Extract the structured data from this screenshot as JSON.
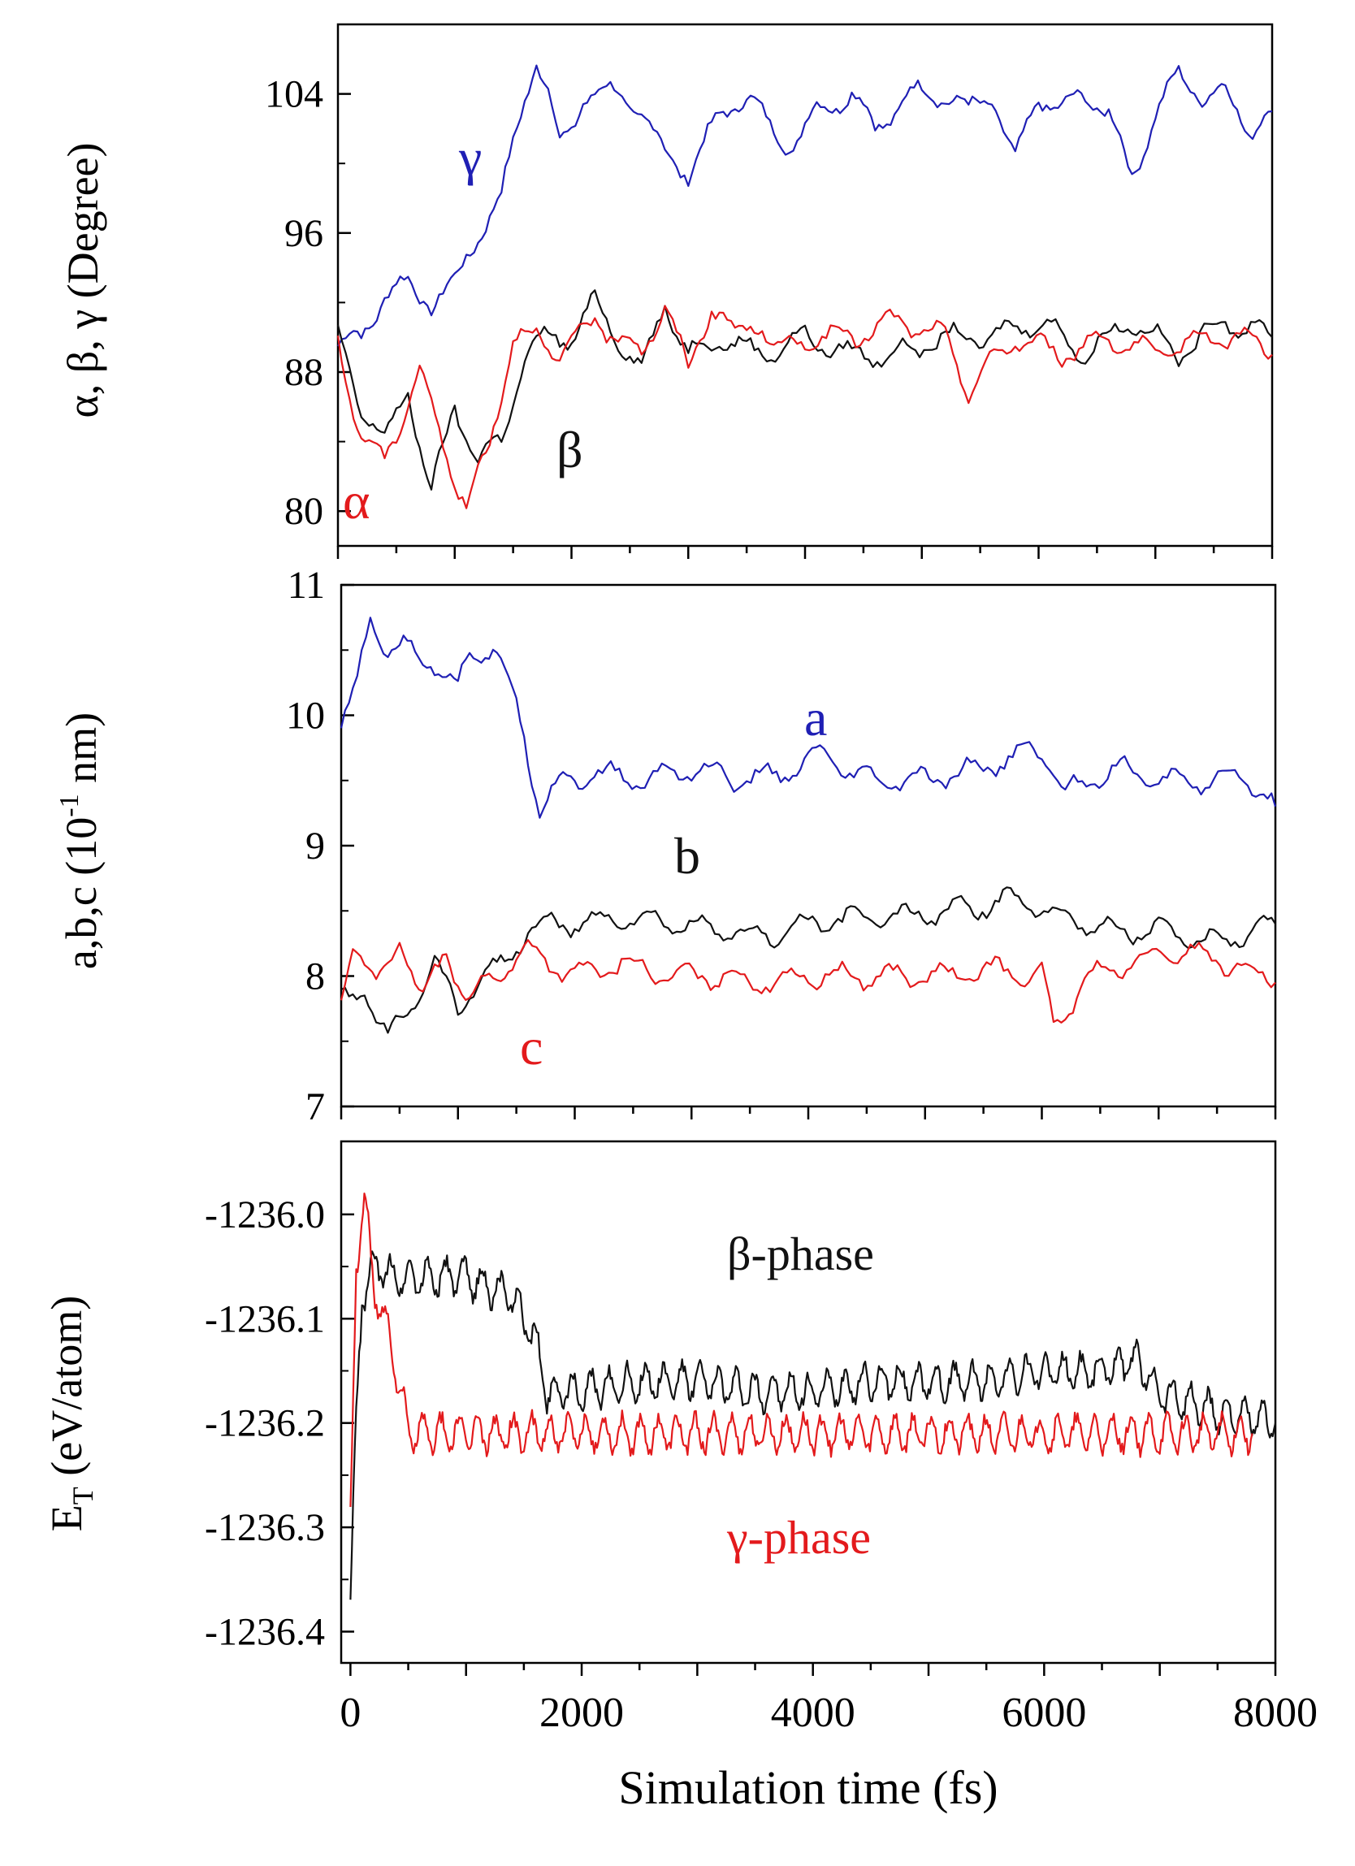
{
  "chart_data": [
    {
      "type": "line",
      "id": "angles",
      "ylabel": "α, β, γ (Degree)",
      "xlim": [
        0,
        8000
      ],
      "ylim": [
        78,
        108
      ],
      "yticks": [
        80,
        88,
        96,
        104
      ],
      "series": [
        {
          "name": "γ",
          "color": "#1f1fb4",
          "points": [
            [
              0,
              89.5
            ],
            [
              200,
              90
            ],
            [
              400,
              92.5
            ],
            [
              600,
              93
            ],
            [
              800,
              92
            ],
            [
              1000,
              93
            ],
            [
              1200,
              96
            ],
            [
              1400,
              98
            ],
            [
              1600,
              104
            ],
            [
              1700,
              106
            ],
            [
              1800,
              104
            ],
            [
              1900,
              101
            ],
            [
              2000,
              102
            ],
            [
              2100,
              104
            ],
            [
              2400,
              104
            ],
            [
              2600,
              103
            ],
            [
              2800,
              100.5
            ],
            [
              3000,
              99.5
            ],
            [
              3300,
              103
            ],
            [
              3500,
              104
            ],
            [
              3700,
              102
            ],
            [
              3900,
              101
            ],
            [
              4100,
              103
            ],
            [
              4400,
              104
            ],
            [
              4600,
              102
            ],
            [
              4900,
              104
            ],
            [
              5200,
              104
            ],
            [
              5400,
              103
            ],
            [
              5600,
              104
            ],
            [
              5800,
              100
            ],
            [
              6000,
              104
            ],
            [
              6200,
              103
            ],
            [
              6400,
              104
            ],
            [
              6600,
              103
            ],
            [
              6800,
              99
            ],
            [
              7000,
              103
            ],
            [
              7200,
              105
            ],
            [
              7400,
              104
            ],
            [
              7600,
              104
            ],
            [
              7800,
              102
            ],
            [
              8000,
              103
            ]
          ]
        },
        {
          "name": "β",
          "color": "#111111",
          "points": [
            [
              0,
              90
            ],
            [
              200,
              86
            ],
            [
              400,
              84
            ],
            [
              600,
              87
            ],
            [
              800,
              81
            ],
            [
              1000,
              86
            ],
            [
              1200,
              83
            ],
            [
              1400,
              84
            ],
            [
              1600,
              89
            ],
            [
              1800,
              90
            ],
            [
              2000,
              90
            ],
            [
              2200,
              92
            ],
            [
              2400,
              90
            ],
            [
              2600,
              88
            ],
            [
              2800,
              92
            ],
            [
              3000,
              89
            ],
            [
              3300,
              90
            ],
            [
              3600,
              89
            ],
            [
              4000,
              90
            ],
            [
              4400,
              89
            ],
            [
              4800,
              89
            ],
            [
              5200,
              90
            ],
            [
              5600,
              90
            ],
            [
              6000,
              91
            ],
            [
              6400,
              89
            ],
            [
              6800,
              91
            ],
            [
              7200,
              89
            ],
            [
              7600,
              91
            ],
            [
              8000,
              90
            ]
          ]
        },
        {
          "name": "α",
          "color": "#e31a1c",
          "points": [
            [
              0,
              90
            ],
            [
              200,
              84
            ],
            [
              400,
              83
            ],
            [
              700,
              88
            ],
            [
              900,
              84
            ],
            [
              1100,
              80
            ],
            [
              1300,
              84
            ],
            [
              1500,
              90
            ],
            [
              1700,
              90
            ],
            [
              1900,
              89
            ],
            [
              2200,
              91
            ],
            [
              2400,
              90
            ],
            [
              2600,
              89
            ],
            [
              2800,
              92
            ],
            [
              3000,
              88
            ],
            [
              3200,
              92
            ],
            [
              3400,
              90
            ],
            [
              3600,
              91
            ],
            [
              3800,
              89
            ],
            [
              4000,
              90
            ],
            [
              4400,
              90
            ],
            [
              4800,
              91
            ],
            [
              5200,
              90
            ],
            [
              5400,
              87
            ],
            [
              5800,
              90
            ],
            [
              6200,
              89
            ],
            [
              6600,
              90
            ],
            [
              7000,
              89
            ],
            [
              7400,
              90
            ],
            [
              7800,
              90
            ],
            [
              8000,
              89
            ]
          ]
        }
      ],
      "annotations": [
        "γ",
        "β",
        "α"
      ]
    },
    {
      "type": "line",
      "id": "lattice",
      "ylabel_main": "a,b,c (10",
      "ylabel_sup": "-1",
      "ylabel_tail": " nm)",
      "xlim": [
        0,
        8000
      ],
      "ylim": [
        7,
        11
      ],
      "yticks": [
        7,
        8,
        9,
        10,
        11
      ],
      "series": [
        {
          "name": "a",
          "color": "#1f1fb4",
          "points": [
            [
              0,
              9.9
            ],
            [
              100,
              10.1
            ],
            [
              250,
              10.75
            ],
            [
              400,
              10.5
            ],
            [
              600,
              10.5
            ],
            [
              800,
              10.4
            ],
            [
              1000,
              10.2
            ],
            [
              1100,
              10.5
            ],
            [
              1300,
              10.5
            ],
            [
              1500,
              10.1
            ],
            [
              1700,
              9.3
            ],
            [
              1900,
              9.5
            ],
            [
              2200,
              9.55
            ],
            [
              2600,
              9.5
            ],
            [
              3000,
              9.6
            ],
            [
              3400,
              9.5
            ],
            [
              3800,
              9.55
            ],
            [
              4100,
              9.7
            ],
            [
              4500,
              9.5
            ],
            [
              5000,
              9.5
            ],
            [
              5500,
              9.6
            ],
            [
              6000,
              9.75
            ],
            [
              6200,
              9.4
            ],
            [
              6600,
              9.6
            ],
            [
              7000,
              9.5
            ],
            [
              7400,
              9.5
            ],
            [
              7800,
              9.5
            ],
            [
              8000,
              9.3
            ]
          ]
        },
        {
          "name": "b",
          "color": "#111111",
          "points": [
            [
              0,
              7.8
            ],
            [
              200,
              7.9
            ],
            [
              400,
              7.5
            ],
            [
              600,
              7.8
            ],
            [
              800,
              8.1
            ],
            [
              1000,
              7.75
            ],
            [
              1200,
              8.0
            ],
            [
              1400,
              8.1
            ],
            [
              1600,
              8.35
            ],
            [
              1800,
              8.4
            ],
            [
              2000,
              8.4
            ],
            [
              2400,
              8.45
            ],
            [
              2800,
              8.4
            ],
            [
              3200,
              8.35
            ],
            [
              3600,
              8.3
            ],
            [
              4000,
              8.4
            ],
            [
              4400,
              8.45
            ],
            [
              4800,
              8.45
            ],
            [
              5200,
              8.5
            ],
            [
              5600,
              8.55
            ],
            [
              5800,
              8.6
            ],
            [
              6200,
              8.45
            ],
            [
              6600,
              8.35
            ],
            [
              7000,
              8.35
            ],
            [
              7400,
              8.25
            ],
            [
              7800,
              8.35
            ],
            [
              8000,
              8.4
            ]
          ]
        },
        {
          "name": "c",
          "color": "#e31a1c",
          "points": [
            [
              0,
              7.8
            ],
            [
              100,
              8.3
            ],
            [
              300,
              7.9
            ],
            [
              500,
              8.3
            ],
            [
              700,
              7.8
            ],
            [
              900,
              8.2
            ],
            [
              1100,
              7.8
            ],
            [
              1300,
              8.0
            ],
            [
              1600,
              8.2
            ],
            [
              2000,
              8.0
            ],
            [
              2400,
              8.1
            ],
            [
              2800,
              8.0
            ],
            [
              3200,
              8.0
            ],
            [
              3600,
              7.95
            ],
            [
              4000,
              8.0
            ],
            [
              4400,
              8.0
            ],
            [
              4800,
              8.0
            ],
            [
              5200,
              8.0
            ],
            [
              5600,
              8.05
            ],
            [
              6000,
              8.0
            ],
            [
              6100,
              7.6
            ],
            [
              6400,
              8.0
            ],
            [
              6800,
              8.1
            ],
            [
              7200,
              8.2
            ],
            [
              7600,
              8.1
            ],
            [
              8000,
              7.95
            ]
          ]
        }
      ],
      "annotations": [
        "a",
        "b",
        "c"
      ]
    },
    {
      "type": "line",
      "id": "energy",
      "ylabel_main": "E",
      "ylabel_sub": "T",
      "ylabel_tail": " (eV/atom)",
      "xlabel": "Simulation time (fs)",
      "xlim": [
        -80,
        8000
      ],
      "ylim": [
        -1236.43,
        -1235.93
      ],
      "xticks": [
        0,
        2000,
        4000,
        6000,
        8000
      ],
      "yticks": [
        -1236.4,
        -1236.3,
        -1236.2,
        -1236.1,
        -1236.0
      ],
      "ytick_labels": [
        "-1236.4",
        "-1236.3",
        "-1236.2",
        "-1236.1",
        "-1236.0"
      ],
      "series": [
        {
          "name": "β-phase",
          "color": "#111111",
          "points": [
            [
              0,
              -1236.37
            ],
            [
              50,
              -1236.2
            ],
            [
              100,
              -1236.08
            ],
            [
              200,
              -1236.05
            ],
            [
              400,
              -1236.06
            ],
            [
              600,
              -1236.06
            ],
            [
              800,
              -1236.06
            ],
            [
              1000,
              -1236.06
            ],
            [
              1200,
              -1236.07
            ],
            [
              1400,
              -1236.08
            ],
            [
              1600,
              -1236.12
            ],
            [
              1700,
              -1236.17
            ],
            [
              2000,
              -1236.17
            ],
            [
              2500,
              -1236.16
            ],
            [
              3000,
              -1236.16
            ],
            [
              3500,
              -1236.17
            ],
            [
              4000,
              -1236.17
            ],
            [
              4500,
              -1236.16
            ],
            [
              5000,
              -1236.16
            ],
            [
              5500,
              -1236.16
            ],
            [
              6000,
              -1236.15
            ],
            [
              6500,
              -1236.15
            ],
            [
              6800,
              -1236.14
            ],
            [
              7000,
              -1236.17
            ],
            [
              7500,
              -1236.19
            ],
            [
              8000,
              -1236.2
            ]
          ]
        },
        {
          "name": "γ-phase",
          "color": "#e31a1c",
          "points": [
            [
              0,
              -1236.3
            ],
            [
              50,
              -1236.05
            ],
            [
              120,
              -1235.98
            ],
            [
              200,
              -1236.07
            ],
            [
              300,
              -1236.1
            ],
            [
              400,
              -1236.15
            ],
            [
              500,
              -1236.21
            ],
            [
              700,
              -1236.21
            ],
            [
              1000,
              -1236.21
            ],
            [
              1500,
              -1236.21
            ],
            [
              2000,
              -1236.21
            ],
            [
              3000,
              -1236.21
            ],
            [
              4000,
              -1236.21
            ],
            [
              5000,
              -1236.21
            ],
            [
              6000,
              -1236.21
            ],
            [
              7000,
              -1236.21
            ],
            [
              7800,
              -1236.21
            ]
          ]
        }
      ],
      "annotations": [
        "β-phase",
        "γ-phase"
      ]
    }
  ]
}
